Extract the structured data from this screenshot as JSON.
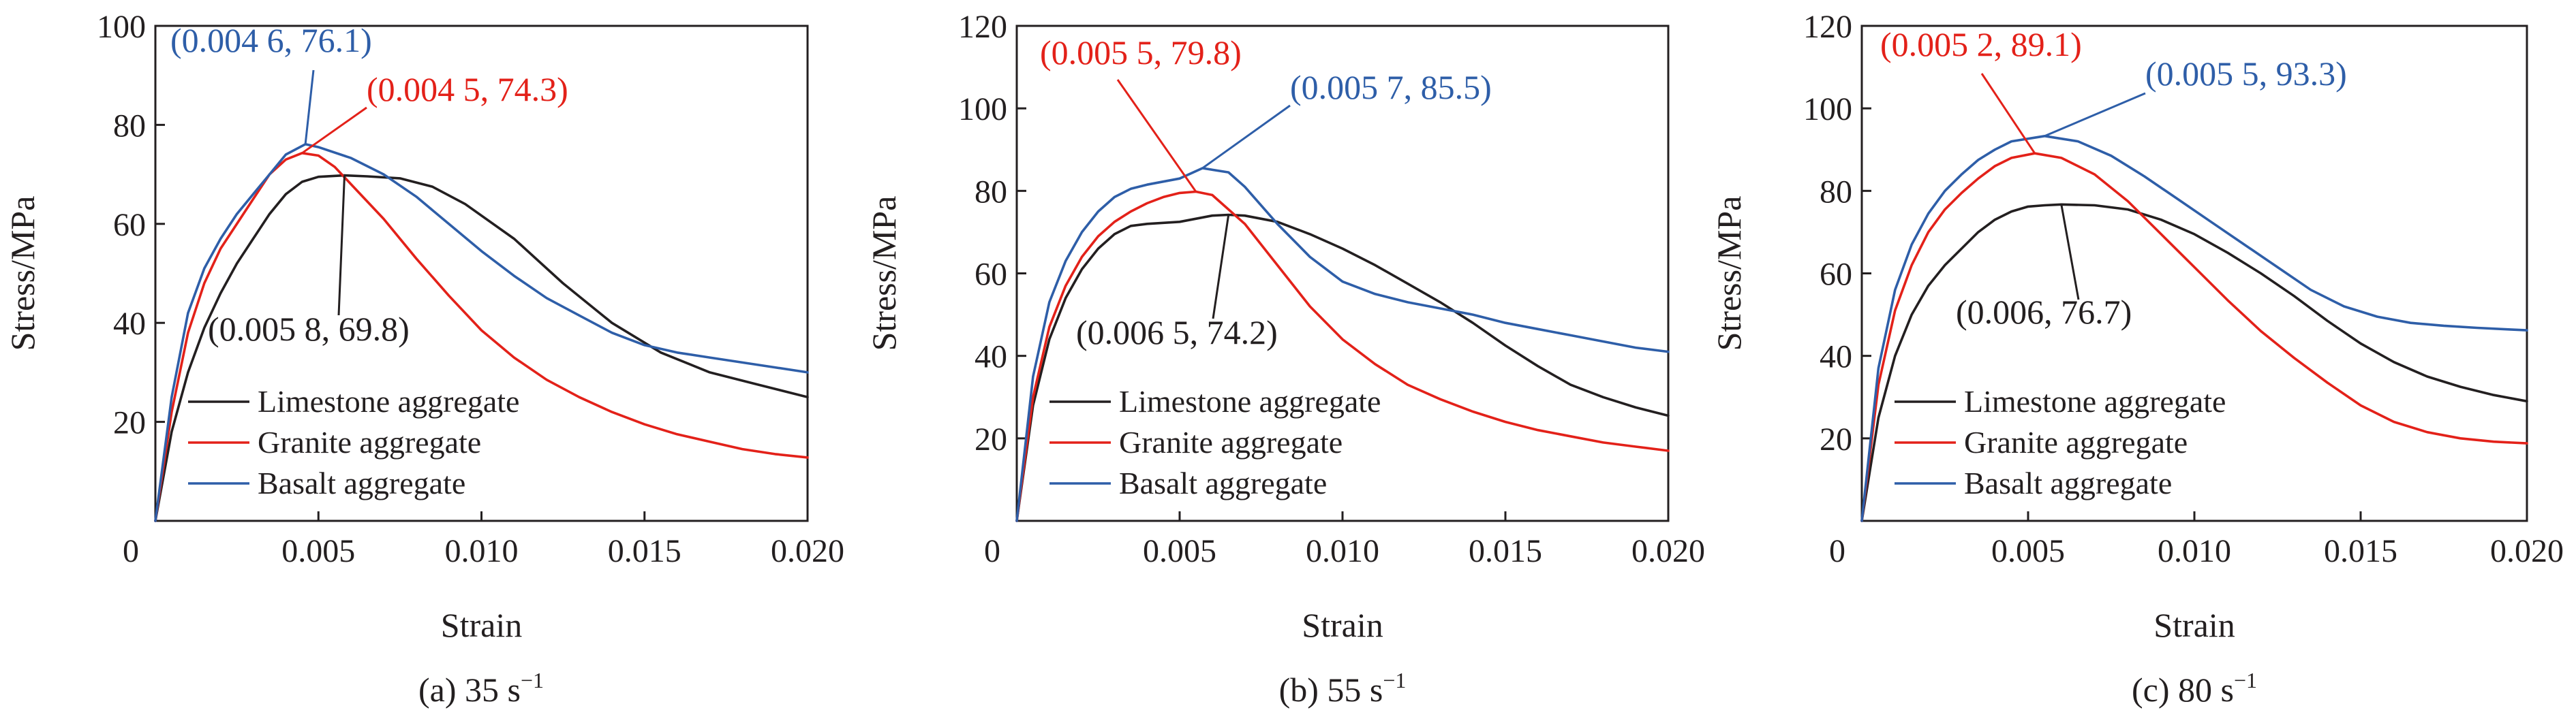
{
  "colors": {
    "limestone": "#231f20",
    "granite": "#e32119",
    "basalt": "#2e5ea8"
  },
  "chart_data": [
    {
      "type": "line",
      "caption": "(a) 35 s",
      "caption_sup": "−1",
      "xlabel": "Strain",
      "ylabel": "Stress/MPa",
      "xlim": [
        0,
        0.02
      ],
      "ylim": [
        0,
        100
      ],
      "xticks": [
        0,
        0.005,
        0.01,
        0.015,
        0.02
      ],
      "xtick_labels": [
        "0",
        "0.005",
        "0.010",
        "0.015",
        "0.020"
      ],
      "yticks": [
        20,
        40,
        60,
        80,
        100
      ],
      "ytick_labels": [
        "20",
        "40",
        "60",
        "80",
        "100"
      ],
      "legend": {
        "placement": "lower-left",
        "entries": [
          "Limestone aggregate",
          "Granite aggregate",
          "Basalt aggregate"
        ]
      },
      "series": [
        {
          "name": "Limestone aggregate",
          "color": "#231f20",
          "x": [
            0,
            0.0005,
            0.001,
            0.0015,
            0.002,
            0.0025,
            0.003,
            0.0035,
            0.004,
            0.0045,
            0.005,
            0.0058,
            0.0065,
            0.0075,
            0.0085,
            0.0095,
            0.011,
            0.0125,
            0.014,
            0.0155,
            0.017,
            0.0185,
            0.02
          ],
          "y": [
            0,
            18,
            30,
            39,
            46,
            52,
            57,
            62,
            66,
            68.5,
            69.5,
            69.8,
            69.6,
            69.2,
            67.5,
            64,
            57,
            48,
            40,
            34,
            30,
            27.5,
            25
          ]
        },
        {
          "name": "Granite aggregate",
          "color": "#e32119",
          "x": [
            0,
            0.0005,
            0.001,
            0.0015,
            0.002,
            0.0025,
            0.003,
            0.0035,
            0.004,
            0.0045,
            0.005,
            0.0055,
            0.006,
            0.007,
            0.008,
            0.009,
            0.01,
            0.011,
            0.012,
            0.013,
            0.014,
            0.015,
            0.016,
            0.017,
            0.018,
            0.019,
            0.02
          ],
          "y": [
            0,
            22,
            38,
            48,
            55,
            60,
            65,
            70,
            73,
            74.3,
            73.8,
            71.5,
            68,
            61,
            53,
            45.5,
            38.5,
            33,
            28.5,
            25,
            22,
            19.5,
            17.5,
            16,
            14.5,
            13.5,
            12.8
          ]
        },
        {
          "name": "Basalt aggregate",
          "color": "#2e5ea8",
          "x": [
            0,
            0.0005,
            0.001,
            0.0015,
            0.002,
            0.0025,
            0.003,
            0.0035,
            0.004,
            0.0046,
            0.005,
            0.006,
            0.007,
            0.008,
            0.009,
            0.01,
            0.011,
            0.012,
            0.013,
            0.014,
            0.015,
            0.016,
            0.017,
            0.018,
            0.019,
            0.02
          ],
          "y": [
            0,
            25,
            42,
            51,
            57,
            62,
            66,
            70,
            74,
            76.1,
            75.5,
            73.3,
            70,
            65.5,
            60,
            54.5,
            49.5,
            45,
            41.5,
            38,
            35.5,
            34,
            33,
            32,
            31,
            30
          ]
        }
      ],
      "annotations": [
        {
          "label": "(0.004 6, 76.1)",
          "color": "#2e5ea8",
          "point": [
            0.0046,
            76.1
          ]
        },
        {
          "label": "(0.004 5, 74.3)",
          "color": "#e32119",
          "point": [
            0.0045,
            74.3
          ]
        },
        {
          "label": "(0.005 8, 69.8)",
          "color": "#231f20",
          "point": [
            0.0058,
            69.8
          ]
        }
      ]
    },
    {
      "type": "line",
      "caption": "(b) 55 s",
      "caption_sup": "−1",
      "xlabel": "Strain",
      "ylabel": "Stress/MPa",
      "xlim": [
        0,
        0.02
      ],
      "ylim": [
        0,
        120
      ],
      "xticks": [
        0,
        0.005,
        0.01,
        0.015,
        0.02
      ],
      "xtick_labels": [
        "0",
        "0.005",
        "0.010",
        "0.015",
        "0.020"
      ],
      "yticks": [
        20,
        40,
        60,
        80,
        100,
        120
      ],
      "ytick_labels": [
        "20",
        "40",
        "60",
        "80",
        "100",
        "120"
      ],
      "legend": {
        "placement": "lower-left",
        "entries": [
          "Limestone aggregate",
          "Granite aggregate",
          "Basalt aggregate"
        ]
      },
      "series": [
        {
          "name": "Limestone aggregate",
          "color": "#231f20",
          "x": [
            0,
            0.0005,
            0.001,
            0.0015,
            0.002,
            0.0025,
            0.003,
            0.0035,
            0.004,
            0.005,
            0.006,
            0.0065,
            0.007,
            0.008,
            0.009,
            0.01,
            0.011,
            0.012,
            0.013,
            0.014,
            0.015,
            0.016,
            0.017,
            0.018,
            0.019,
            0.02
          ],
          "y": [
            0,
            28,
            44,
            54,
            61,
            66,
            69.5,
            71.5,
            72,
            72.5,
            74,
            74.2,
            74,
            72.5,
            69.5,
            66,
            62,
            57.5,
            53,
            48,
            42.5,
            37.5,
            33,
            30,
            27.5,
            25.5
          ]
        },
        {
          "name": "Granite aggregate",
          "color": "#e32119",
          "x": [
            0,
            0.0005,
            0.001,
            0.0015,
            0.002,
            0.0025,
            0.003,
            0.0035,
            0.004,
            0.0045,
            0.005,
            0.0055,
            0.006,
            0.007,
            0.008,
            0.009,
            0.01,
            0.011,
            0.012,
            0.013,
            0.014,
            0.015,
            0.016,
            0.017,
            0.018,
            0.019,
            0.02
          ],
          "y": [
            0,
            30,
            47,
            57,
            64,
            69,
            72.5,
            75,
            77,
            78.5,
            79.5,
            79.8,
            79,
            72,
            62,
            52,
            44,
            38,
            33,
            29.5,
            26.5,
            24,
            22,
            20.5,
            19,
            18,
            17
          ]
        },
        {
          "name": "Basalt aggregate",
          "color": "#2e5ea8",
          "x": [
            0,
            0.0005,
            0.001,
            0.0015,
            0.002,
            0.0025,
            0.003,
            0.0035,
            0.004,
            0.005,
            0.0057,
            0.0065,
            0.007,
            0.008,
            0.009,
            0.01,
            0.011,
            0.012,
            0.013,
            0.014,
            0.015,
            0.016,
            0.017,
            0.018,
            0.019,
            0.02
          ],
          "y": [
            0,
            35,
            53,
            63,
            70,
            75,
            78.5,
            80.5,
            81.5,
            83,
            85.5,
            84.5,
            81,
            72,
            64,
            58,
            55,
            53,
            51.5,
            50,
            48,
            46.5,
            45,
            43.5,
            42,
            41
          ]
        }
      ],
      "annotations": [
        {
          "label": "(0.005 5, 79.8)",
          "color": "#e32119",
          "point": [
            0.0055,
            79.8
          ]
        },
        {
          "label": "(0.005 7, 85.5)",
          "color": "#2e5ea8",
          "point": [
            0.0057,
            85.5
          ]
        },
        {
          "label": "(0.006 5, 74.2)",
          "color": "#231f20",
          "point": [
            0.0065,
            74.2
          ]
        }
      ]
    },
    {
      "type": "line",
      "caption": "(c) 80 s",
      "caption_sup": "−1",
      "xlabel": "Strain",
      "ylabel": "Stress/MPa",
      "xlim": [
        0,
        0.02
      ],
      "ylim": [
        0,
        120
      ],
      "xticks": [
        0,
        0.005,
        0.01,
        0.015,
        0.02
      ],
      "xtick_labels": [
        "0",
        "0.005",
        "0.010",
        "0.015",
        "0.020"
      ],
      "yticks": [
        20,
        40,
        60,
        80,
        100,
        120
      ],
      "ytick_labels": [
        "20",
        "40",
        "60",
        "80",
        "100",
        "120"
      ],
      "legend": {
        "placement": "lower-left",
        "entries": [
          "Limestone aggregate",
          "Granite aggregate",
          "Basalt aggregate"
        ]
      },
      "series": [
        {
          "name": "Limestone aggregate",
          "color": "#231f20",
          "x": [
            0,
            0.0005,
            0.001,
            0.0015,
            0.002,
            0.0025,
            0.003,
            0.0035,
            0.004,
            0.0045,
            0.005,
            0.0055,
            0.006,
            0.007,
            0.008,
            0.009,
            0.01,
            0.011,
            0.012,
            0.013,
            0.014,
            0.015,
            0.016,
            0.017,
            0.018,
            0.019,
            0.02
          ],
          "y": [
            0,
            25,
            40,
            50,
            57,
            62,
            66,
            70,
            73,
            75,
            76.2,
            76.5,
            76.7,
            76.5,
            75.5,
            73,
            69.5,
            65,
            60,
            54.5,
            48.5,
            43,
            38.5,
            35,
            32.5,
            30.5,
            29
          ]
        },
        {
          "name": "Granite aggregate",
          "color": "#e32119",
          "x": [
            0,
            0.0005,
            0.001,
            0.0015,
            0.002,
            0.0025,
            0.003,
            0.0035,
            0.004,
            0.0045,
            0.0052,
            0.006,
            0.007,
            0.008,
            0.009,
            0.01,
            0.011,
            0.012,
            0.013,
            0.014,
            0.015,
            0.016,
            0.017,
            0.018,
            0.019,
            0.02
          ],
          "y": [
            0,
            33,
            51,
            62,
            70,
            75.5,
            79.5,
            83,
            86,
            88,
            89.1,
            88,
            84,
            77.5,
            69.5,
            61.5,
            53.5,
            46,
            39.5,
            33.5,
            28,
            24,
            21.5,
            20,
            19.2,
            18.8
          ]
        },
        {
          "name": "Basalt aggregate",
          "color": "#2e5ea8",
          "x": [
            0,
            0.0005,
            0.001,
            0.0015,
            0.002,
            0.0025,
            0.003,
            0.0035,
            0.004,
            0.0045,
            0.0055,
            0.0065,
            0.0075,
            0.0085,
            0.0095,
            0.0105,
            0.0115,
            0.0125,
            0.0135,
            0.0145,
            0.0155,
            0.0165,
            0.0175,
            0.0185,
            0.0195,
            0.02
          ],
          "y": [
            0,
            37,
            56,
            67,
            74.5,
            80,
            84,
            87.5,
            90,
            92,
            93.3,
            92,
            88.5,
            83.5,
            78,
            72.5,
            67,
            61.5,
            56,
            52,
            49.5,
            48,
            47.3,
            46.8,
            46.4,
            46.2
          ]
        }
      ],
      "annotations": [
        {
          "label": "(0.005 2, 89.1)",
          "color": "#e32119",
          "point": [
            0.0052,
            89.1
          ]
        },
        {
          "label": "(0.005 5, 93.3)",
          "color": "#2e5ea8",
          "point": [
            0.0055,
            93.3
          ]
        },
        {
          "label": "(0.006, 76.7)",
          "color": "#231f20",
          "point": [
            0.006,
            76.7
          ]
        }
      ]
    }
  ]
}
